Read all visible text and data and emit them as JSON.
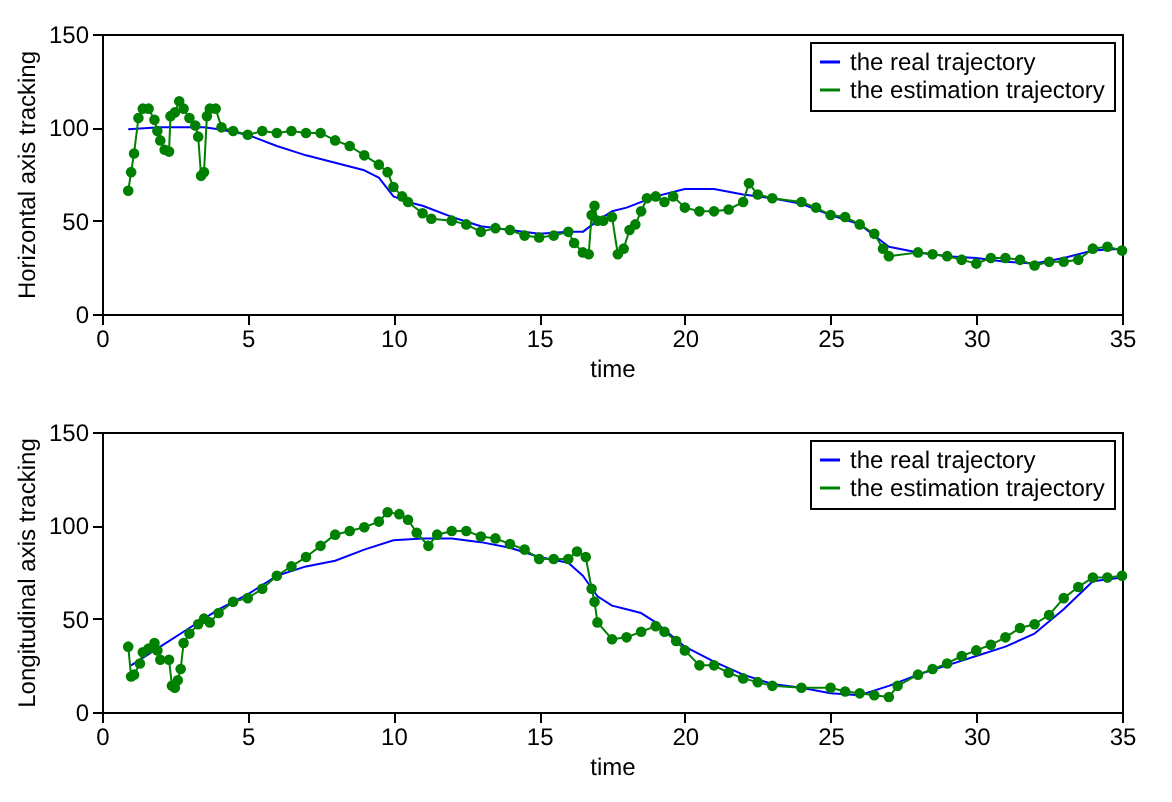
{
  "chart_data": [
    {
      "type": "line",
      "xlabel": "time",
      "ylabel": "Horizontal axis tracking",
      "xlim": [
        0,
        35
      ],
      "xticks": [
        0,
        5,
        10,
        15,
        20,
        25,
        30,
        35
      ],
      "ylim": [
        0,
        150
      ],
      "yticks": [
        0,
        50,
        100,
        150
      ],
      "grid": false,
      "legend": "top right",
      "series": [
        {
          "name": "the real trajectory",
          "color": "#0000ff",
          "marker": "none",
          "x": [
            0.9,
            2,
            3,
            3.5,
            4,
            5,
            6,
            7,
            8,
            9,
            9.5,
            10,
            10.5,
            11,
            12,
            13,
            14,
            15,
            16,
            16.5,
            17,
            17.5,
            18,
            19,
            20,
            21,
            22,
            23,
            24,
            25,
            26,
            27,
            28,
            29,
            30,
            31,
            32,
            33,
            34,
            35
          ],
          "values": [
            99,
            100,
            100,
            100,
            99,
            96,
            90,
            85,
            81,
            77,
            73,
            63,
            60,
            58,
            52,
            47,
            45,
            43,
            44,
            44,
            50,
            55,
            57,
            63,
            67,
            67,
            64,
            62,
            59,
            53,
            48,
            36,
            33,
            31,
            30,
            28,
            27,
            30,
            34,
            35
          ]
        },
        {
          "name": "the estimation trajectory",
          "color": "#008000",
          "marker": "circle",
          "x": [
            0.9,
            1.0,
            1.1,
            1.25,
            1.4,
            1.6,
            1.8,
            1.9,
            2.0,
            2.15,
            2.3,
            2.35,
            2.5,
            2.65,
            2.8,
            3.0,
            3.2,
            3.3,
            3.4,
            3.5,
            3.6,
            3.7,
            3.9,
            4.1,
            4.5,
            5,
            5.5,
            6,
            6.5,
            7,
            7.5,
            8,
            8.5,
            9,
            9.5,
            9.8,
            10,
            10.3,
            10.5,
            11,
            11.3,
            12,
            12.5,
            13,
            13.5,
            14,
            14.5,
            15,
            15.5,
            16,
            16.2,
            16.5,
            16.7,
            16.8,
            16.9,
            17.0,
            17.2,
            17.5,
            17.7,
            17.9,
            18.1,
            18.3,
            18.5,
            18.7,
            19,
            19.3,
            19.6,
            20,
            20.5,
            21,
            21.5,
            22,
            22.2,
            22.5,
            23,
            24,
            24.5,
            25,
            25.5,
            26,
            26.5,
            26.8,
            27,
            28,
            28.5,
            29,
            29.5,
            30,
            30.5,
            31,
            31.5,
            32,
            32.5,
            33,
            33.5,
            34,
            34.5,
            35
          ],
          "values": [
            66,
            76,
            86,
            105,
            110,
            110,
            104,
            98,
            93,
            88,
            87,
            106,
            108,
            114,
            110,
            105,
            101,
            95,
            74,
            76,
            106,
            110,
            110,
            100,
            98,
            96,
            98,
            97,
            98,
            97,
            97,
            93,
            90,
            85,
            80,
            76,
            68,
            63,
            60,
            54,
            51,
            50,
            48,
            44,
            46,
            45,
            42,
            41,
            42,
            44,
            38,
            33,
            32,
            53,
            58,
            50,
            50,
            52,
            32,
            35,
            45,
            48,
            55,
            62,
            63,
            60,
            63,
            57,
            55,
            55,
            56,
            60,
            70,
            64,
            62,
            60,
            57,
            53,
            52,
            48,
            43,
            35,
            31,
            33,
            32,
            31,
            29,
            27,
            30,
            30,
            29,
            26,
            28,
            28,
            29,
            35,
            36,
            34
          ]
        }
      ]
    },
    {
      "type": "line",
      "xlabel": "time",
      "ylabel": "Longitudinal axis tracking",
      "xlim": [
        0,
        35
      ],
      "xticks": [
        0,
        5,
        10,
        15,
        20,
        25,
        30,
        35
      ],
      "ylim": [
        0,
        150
      ],
      "yticks": [
        0,
        50,
        100,
        150
      ],
      "grid": false,
      "legend": "top right",
      "series": [
        {
          "name": "the real trajectory",
          "color": "#0000ff",
          "marker": "none",
          "x": [
            1,
            2,
            3,
            4,
            5,
            6,
            7,
            8,
            9,
            10,
            11,
            12,
            13,
            14,
            15,
            16,
            16.5,
            17,
            17.5,
            18,
            18.5,
            19,
            20,
            21,
            22,
            23,
            24,
            25,
            26,
            27,
            28,
            29,
            30,
            31,
            32,
            33,
            34,
            35
          ],
          "values": [
            25,
            35,
            45,
            55,
            63,
            73,
            78,
            81,
            87,
            92,
            93,
            93,
            91,
            88,
            83,
            80,
            73,
            62,
            57,
            55,
            53,
            48,
            35,
            27,
            20,
            15,
            13,
            10,
            9,
            14,
            20,
            25,
            30,
            35,
            42,
            55,
            70,
            72
          ]
        },
        {
          "name": "the estimation trajectory",
          "color": "#008000",
          "marker": "circle",
          "x": [
            0.9,
            1.0,
            1.1,
            1.3,
            1.4,
            1.6,
            1.8,
            1.9,
            2.0,
            2.3,
            2.4,
            2.5,
            2.6,
            2.7,
            2.8,
            3,
            3.3,
            3.5,
            3.7,
            4,
            4.5,
            5,
            5.5,
            6,
            6.5,
            7,
            7.5,
            8,
            8.5,
            9,
            9.5,
            9.8,
            10.2,
            10.5,
            10.8,
            11.2,
            11.5,
            12,
            12.5,
            13,
            13.5,
            14,
            14.5,
            15,
            15.5,
            16,
            16.3,
            16.6,
            16.8,
            16.9,
            17,
            17.5,
            18,
            18.5,
            19,
            19.3,
            19.7,
            20,
            20.5,
            21,
            21.5,
            22,
            22.5,
            23,
            24,
            25,
            25.5,
            26,
            26.5,
            27,
            27.3,
            28,
            28.5,
            29,
            29.5,
            30,
            30.5,
            31,
            31.5,
            32,
            32.5,
            33,
            33.5,
            34,
            34.5,
            35
          ],
          "values": [
            35,
            19,
            20,
            26,
            32,
            34,
            37,
            33,
            28,
            28,
            14,
            13,
            17,
            23,
            37,
            42,
            47,
            50,
            48,
            53,
            59,
            61,
            66,
            73,
            78,
            83,
            89,
            95,
            97,
            99,
            102,
            107,
            106,
            103,
            96,
            89,
            95,
            97,
            97,
            94,
            93,
            90,
            87,
            82,
            82,
            82,
            86,
            83,
            66,
            59,
            48,
            39,
            40,
            43,
            46,
            43,
            38,
            33,
            25,
            25,
            21,
            18,
            16,
            14,
            13,
            13,
            11,
            10,
            9,
            8,
            14,
            20,
            23,
            26,
            30,
            33,
            36,
            40,
            45,
            47,
            52,
            61,
            67,
            72,
            72,
            73
          ]
        }
      ]
    }
  ]
}
